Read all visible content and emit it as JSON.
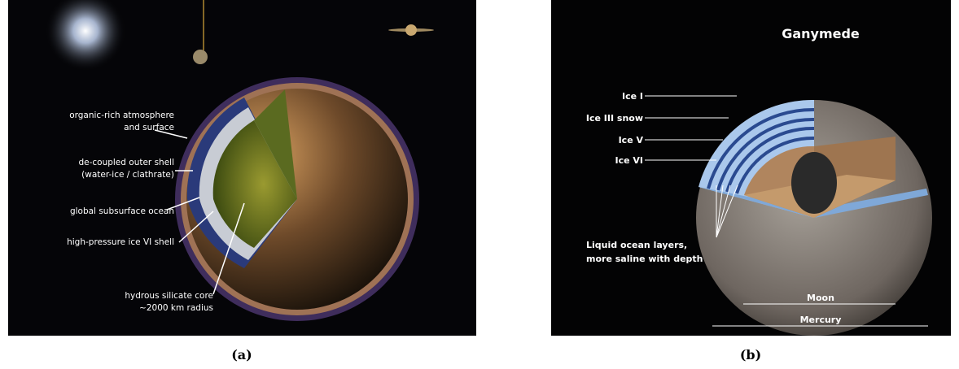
{
  "panels": [
    {
      "caption": "(a)",
      "labels": [
        [
          "organic-rich atmosphere",
          "and surface"
        ],
        [
          "de-coupled outer shell",
          "(water-ice / clathrate)"
        ],
        [
          "global subsurface ocean"
        ],
        [
          "high-pressure ice VI shell"
        ],
        [
          "hydrous silicate core",
          "~2000 km radius"
        ]
      ]
    },
    {
      "caption": "(b)",
      "title": "Ganymede",
      "labels": [
        "Ice I",
        "Ice III snow",
        "Ice V",
        "Ice VI"
      ],
      "ocean_note": [
        "Liquid ocean layers,",
        "more saline with depth"
      ],
      "scale": [
        "Moon",
        "Mercury"
      ]
    }
  ]
}
